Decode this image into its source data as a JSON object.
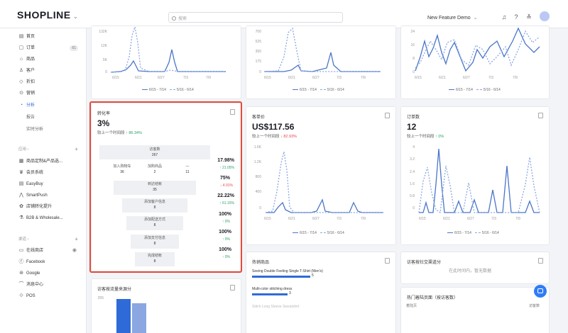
{
  "header": {
    "logo": "SHOPLINE",
    "search_placeholder": "搜索",
    "store_name": "New Feature Demo"
  },
  "sidebar": {
    "items": [
      {
        "icon": "home-icon",
        "label": "首页"
      },
      {
        "icon": "order-icon",
        "label": "订单",
        "badge": "61"
      },
      {
        "icon": "product-icon",
        "label": "商品"
      },
      {
        "icon": "customer-icon",
        "label": "客户"
      },
      {
        "icon": "discount-icon",
        "label": "折扣"
      },
      {
        "icon": "marketing-icon",
        "label": "营销"
      },
      {
        "icon": "analytics-icon",
        "label": "分析"
      }
    ],
    "sub_items": [
      "报告",
      "实时分析"
    ],
    "apps_group": "应用",
    "apps": [
      {
        "icon": "app-icon",
        "label": "商品定制&产品选..."
      },
      {
        "icon": "crown-icon",
        "label": "会员系统"
      },
      {
        "icon": "app-icon",
        "label": "EasyBuy"
      },
      {
        "icon": "app-icon",
        "label": "SmartPush"
      },
      {
        "icon": "app-icon",
        "label": "店铺转化提升"
      },
      {
        "icon": "app-icon",
        "label": "B2B & Wholesale..."
      }
    ],
    "channels_group": "渠道",
    "channels": [
      {
        "icon": "store-icon",
        "label": "在线商店"
      },
      {
        "icon": "facebook-icon",
        "label": "Facebook"
      },
      {
        "icon": "google-icon",
        "label": "Google"
      },
      {
        "icon": "message-icon",
        "label": "消息中心"
      },
      {
        "icon": "pos-icon",
        "label": "POS"
      }
    ]
  },
  "top_cards": {
    "left": {
      "ylabels": [
        "132K",
        "12K",
        "5K",
        "0"
      ],
      "xlabels": [
        "6/15",
        "6/21",
        "6/27",
        "7/3",
        "7/9"
      ]
    },
    "middle": {
      "ylabels": [
        "700",
        "525",
        "350",
        "175",
        "0"
      ],
      "xlabels": [
        "6/15",
        "6/21",
        "6/27",
        "7/3",
        "7/9"
      ]
    },
    "right": {
      "ylabels": [
        "24",
        "16",
        "8",
        "0"
      ],
      "xlabels": [
        "6/15",
        "6/21",
        "6/27",
        "7/3",
        "7/9"
      ]
    },
    "legend_current": "6/15 - 7/14",
    "legend_previous": "5/16 - 6/14"
  },
  "conversion": {
    "title": "转化率",
    "value": "3%",
    "compare_label": "较上一个时间段",
    "compare_change": "↑ 86.34%",
    "steps": [
      {
        "label": "访客数",
        "value": "267"
      },
      {
        "label": "加入购物车",
        "value": "36"
      },
      {
        "label": "加购商品",
        "value": "2"
      },
      {
        "label": "—",
        "value": "11"
      },
      {
        "label": "到达结帐",
        "value": "35"
      },
      {
        "label": "添加客户信息",
        "value": "8"
      },
      {
        "label": "添加配送方式",
        "value": "8"
      },
      {
        "label": "添加支付信息",
        "value": "8"
      },
      {
        "label": "完成结帐",
        "value": "8"
      }
    ],
    "rates": [
      {
        "pct": "17.98%",
        "change": "↑ 21.05%",
        "dir": "up"
      },
      {
        "pct": "75%",
        "change": "↓ 4.91%",
        "dir": "down"
      },
      {
        "pct": "22.22%",
        "change": "↑ 61.15%",
        "dir": "up"
      },
      {
        "pct": "100%",
        "change": "↑ 0%",
        "dir": "up"
      },
      {
        "pct": "100%",
        "change": "↑ 0%",
        "dir": "up"
      },
      {
        "pct": "100%",
        "change": "↑ 0%",
        "dir": "up"
      }
    ]
  },
  "aov": {
    "title": "客单价",
    "value": "US$117.56",
    "compare_label": "较上一个时间段",
    "compare_change": "↓ 82.93%",
    "ylabels": [
      "1.6K",
      "1.2K",
      "800",
      "400",
      "0"
    ],
    "xlabels": [
      "6/15",
      "6/21",
      "6/27",
      "7/3",
      "7/9"
    ]
  },
  "orders": {
    "title": "订单数",
    "value": "12",
    "compare_label": "较上一个时间段",
    "compare_change": "↑ 0%",
    "ylabels": [
      "4",
      "3.2",
      "2.4",
      "1.6",
      "0.8",
      "0"
    ],
    "xlabels": [
      "6/15",
      "6/21",
      "6/27",
      "7/3",
      "7/9"
    ]
  },
  "visitor_sources": {
    "title": "访客按流量来源分",
    "ylabel": "255"
  },
  "hot_products": {
    "title": "热销商品",
    "items": [
      {
        "name": "Seeing Double Feeling Single T-Shirt (Men's)",
        "count": "5",
        "frac": 1.0
      },
      {
        "name": "Multi-color stitching dress",
        "count": "3",
        "frac": 0.6
      },
      {
        "name": "Stitch Long Sleeve Sweatshirt",
        "count": "",
        "frac": 0.2
      }
    ]
  },
  "visitor_sessions": {
    "title": "访客按社交渠道分",
    "empty": "在此时间内，暂无数据"
  },
  "hot_pages": {
    "title": "热门着陆页面（按访客数）",
    "col_page": "着陆页",
    "col_visitors": "访客数"
  }
}
